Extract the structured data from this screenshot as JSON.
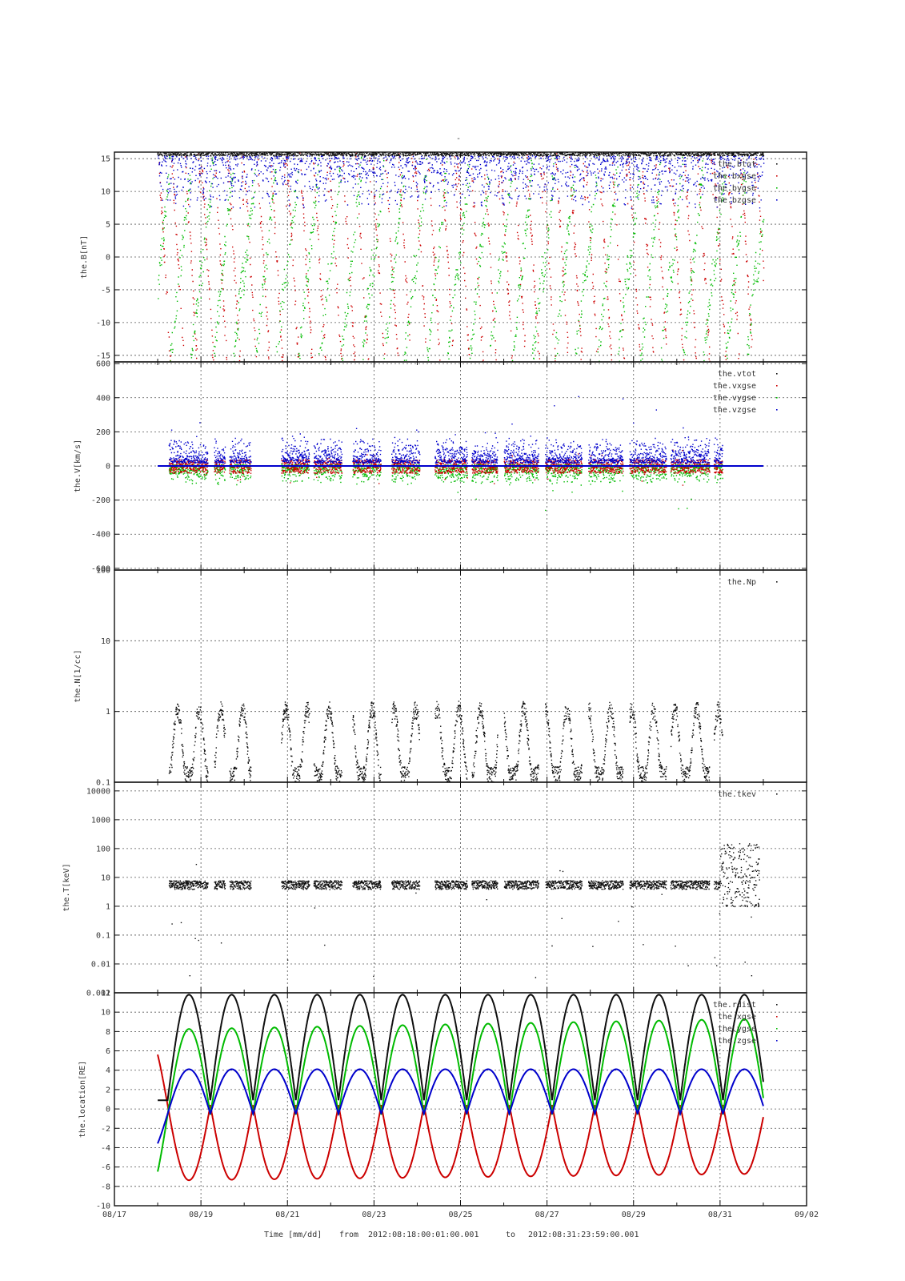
{
  "figure": {
    "top_mark": "-",
    "footer": {
      "label": "Time [mm/dd]",
      "from_word": "from",
      "from_value": "2012:08:18:00:01:00.001",
      "to_word": "to",
      "to_value": "2012:08:31:23:59:00.001"
    },
    "x_ticks": [
      "08/17",
      "08/19",
      "08/21",
      "08/23",
      "08/25",
      "08/27",
      "08/29",
      "08/31",
      "09/02"
    ],
    "x_range_days": [
      17,
      33
    ],
    "data_range_days": [
      18,
      32
    ]
  },
  "chart_data": [
    {
      "type": "scatter",
      "ylabel": "the.B[nT]",
      "ylim": [
        -16,
        16
      ],
      "scale": "linear",
      "yticks": [
        15,
        10,
        5,
        0,
        -5,
        -10,
        -15
      ],
      "ytick_labels": [
        "15",
        "10",
        "5",
        "0",
        "-5",
        "-10",
        "-15"
      ],
      "grid": true,
      "legend_position": "top-right",
      "series": [
        {
          "name": "the.btot",
          "color": "#101010"
        },
        {
          "name": "the.bxgse",
          "color": "#cc0000"
        },
        {
          "name": "the.bygse",
          "color": "#00bb00"
        },
        {
          "name": "the.bzgse",
          "color": "#0000cc"
        }
      ]
    },
    {
      "type": "scatter",
      "ylabel": "the.V[km/s]",
      "ylim": [
        -610,
        610
      ],
      "scale": "linear",
      "yticks": [
        600,
        400,
        200,
        0,
        -200,
        -400,
        -600
      ],
      "ytick_labels": [
        "600",
        "400",
        "200",
        "0",
        "-200",
        "-400",
        "-600"
      ],
      "grid": true,
      "legend_position": "top-right",
      "series": [
        {
          "name": "the.vtot",
          "color": "#101010"
        },
        {
          "name": "the.vxgse",
          "color": "#cc0000"
        },
        {
          "name": "the.vygse",
          "color": "#00bb00"
        },
        {
          "name": "the.vzgse",
          "color": "#0000cc"
        }
      ]
    },
    {
      "type": "scatter",
      "ylabel": "the.N[1/cc]",
      "ylim": [
        0.1,
        100
      ],
      "scale": "log",
      "yticks": [
        100,
        10,
        1,
        0.1
      ],
      "ytick_labels": [
        "100",
        "10",
        "1",
        "0.1"
      ],
      "grid": true,
      "legend_position": "top-right",
      "series": [
        {
          "name": "the.Np",
          "color": "#101010"
        }
      ]
    },
    {
      "type": "scatter",
      "ylabel": "the.T[keV]",
      "ylim": [
        0.001,
        20000
      ],
      "scale": "log",
      "yticks": [
        10000,
        1000,
        100,
        10,
        1,
        0.1,
        0.01,
        0.001
      ],
      "ytick_labels": [
        "10000",
        "1000",
        "100",
        "10",
        "1",
        "0.1",
        "0.01",
        "0.001"
      ],
      "grid": true,
      "legend_position": "top-right",
      "series": [
        {
          "name": "the.tkev",
          "color": "#101010"
        }
      ]
    },
    {
      "type": "line",
      "ylabel": "the.location[RE]",
      "ylim": [
        -10,
        12
      ],
      "scale": "linear",
      "yticks": [
        12,
        10,
        8,
        6,
        4,
        2,
        0,
        -2,
        -4,
        -6,
        -8,
        -10
      ],
      "ytick_labels": [
        "12",
        "10",
        "8",
        "6",
        "4",
        "2",
        "0",
        "-2",
        "-4",
        "-6",
        "-8",
        "-10"
      ],
      "grid": true,
      "legend_position": "top-right",
      "series": [
        {
          "name": "the.rdist",
          "color": "#101010"
        },
        {
          "name": "the.xgse",
          "color": "#cc0000"
        },
        {
          "name": "the.ygse",
          "color": "#00bb00"
        },
        {
          "name": "the.zgse",
          "color": "#0000cc"
        }
      ]
    }
  ]
}
